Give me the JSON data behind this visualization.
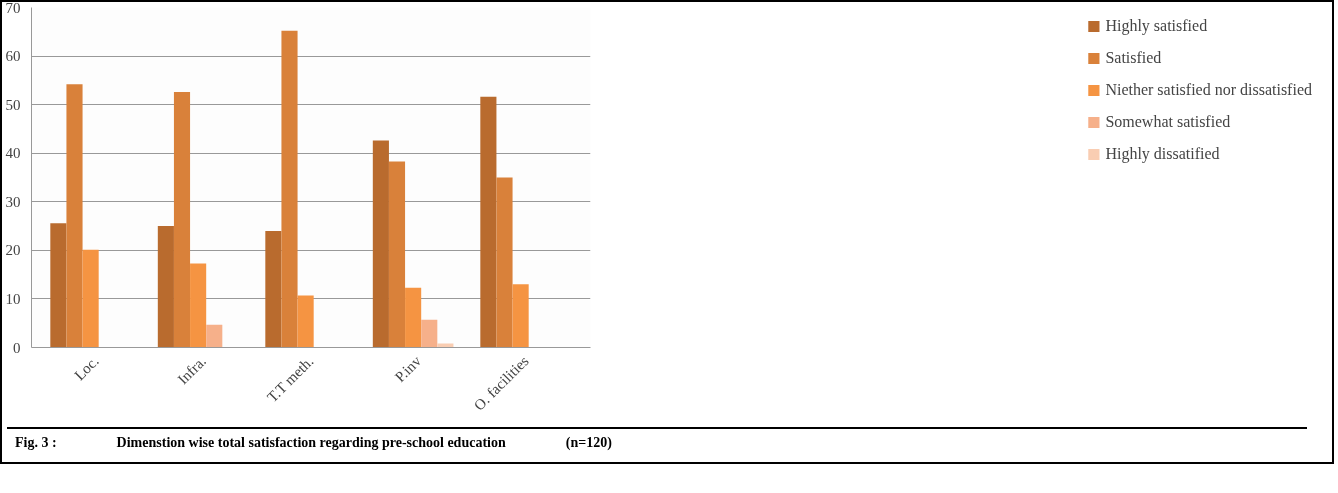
{
  "chart_data": {
    "type": "bar",
    "categories": [
      "Loc.",
      "Infra.",
      "T.T meth.",
      "P.inv",
      "O. facilities"
    ],
    "series": [
      {
        "name": "Highly satisfied",
        "color": "#b96b2e",
        "values": [
          25.6,
          25.0,
          24.0,
          42.6,
          51.6
        ]
      },
      {
        "name": "Satisfied",
        "color": "#d9813a",
        "values": [
          54.2,
          52.6,
          65.2,
          38.3,
          35.0
        ]
      },
      {
        "name": "Niether satisfied nor dissatisfied",
        "color": "#f59442",
        "values": [
          20.1,
          17.3,
          10.7,
          12.3,
          13.0
        ]
      },
      {
        "name": "Somewhat satisfied",
        "color": "#f6b08a",
        "values": [
          null,
          4.7,
          null,
          5.7,
          null
        ]
      },
      {
        "name": "Highly dissatified",
        "color": "#f9cdb2",
        "values": [
          null,
          null,
          null,
          0.8,
          null
        ]
      }
    ],
    "ylim": [
      0,
      70
    ],
    "yticks": [
      0,
      10,
      20,
      30,
      40,
      50,
      60,
      70
    ],
    "grid": "y",
    "legend": "right",
    "annotations": [
      "Fig. 3 :",
      "Dimenstion wise total satisfaction regarding pre-school education",
      "(n=120)"
    ]
  }
}
